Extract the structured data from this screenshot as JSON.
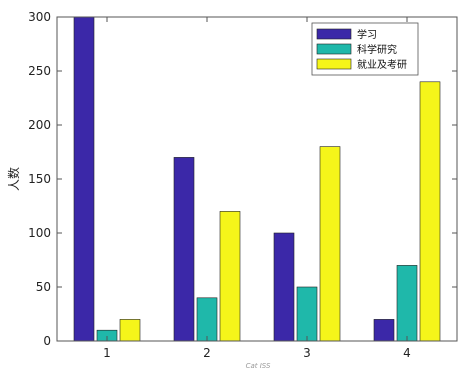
{
  "chart_data": {
    "type": "bar",
    "title": "",
    "xlabel": "Cat ISS",
    "ylabel": "人数",
    "categories": [
      "1",
      "2",
      "3",
      "4"
    ],
    "series": [
      {
        "name": "学习",
        "color": "#3b28a8",
        "values": [
          300,
          170,
          100,
          20
        ]
      },
      {
        "name": "科学研究",
        "color": "#1fb8aa",
        "values": [
          10,
          40,
          50,
          70
        ]
      },
      {
        "name": "就业及考研",
        "color": "#f5f51a",
        "values": [
          20,
          120,
          180,
          240
        ]
      }
    ],
    "ylim": [
      0,
      300
    ],
    "yticks": [
      "0",
      "50",
      "100",
      "150",
      "200",
      "250",
      "300"
    ],
    "grid": false,
    "legend_position": "top-right"
  }
}
